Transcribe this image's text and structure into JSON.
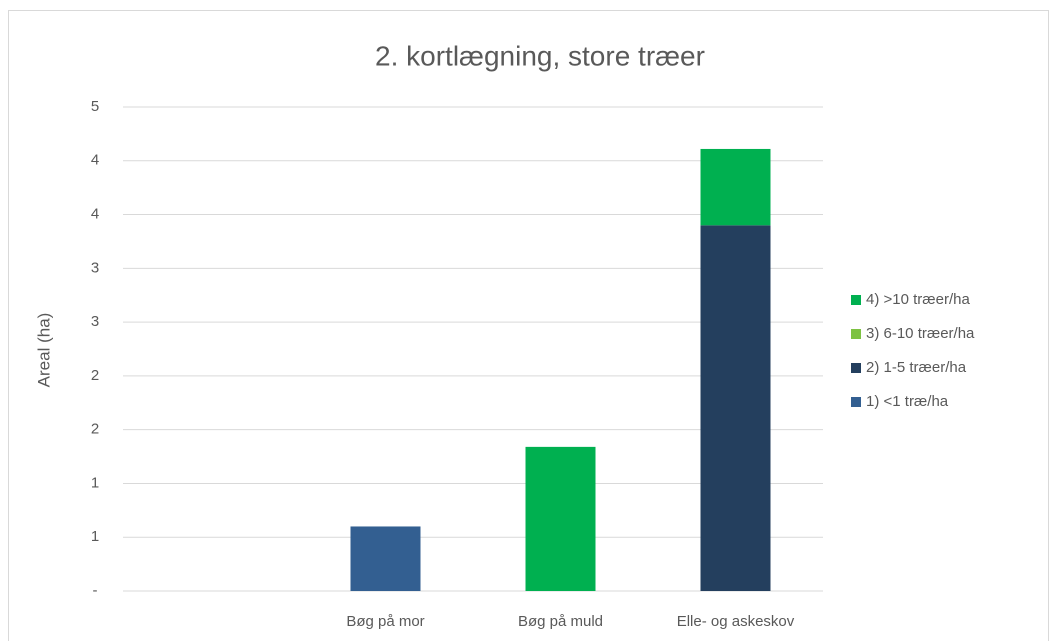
{
  "chart_data": {
    "type": "stacked_bar",
    "title": "2. kortlægning, store træer",
    "y_label": "Areal (ha)",
    "categories": [
      null,
      "Bøg på mor",
      "Bøg på muld",
      "Elle- og askeskov"
    ],
    "series": [
      {
        "name": "1) <1 træ/ha",
        "color": "#335f91",
        "values": [
          0,
          0.6,
          0,
          0
        ]
      },
      {
        "name": "2) 1-5 træer/ha",
        "color": "#243f5e",
        "values": [
          0,
          0,
          0,
          3.4
        ]
      },
      {
        "name": "3) 6-10 træer/ha",
        "color": "#7dc242",
        "values": [
          0,
          0,
          0,
          0
        ]
      },
      {
        "name": "4) >10 træer/ha",
        "color": "#00b050",
        "values": [
          0,
          0,
          1.34,
          0.71
        ]
      }
    ],
    "ylim": [
      0,
      4.5
    ],
    "yticks": [
      {
        "value": 0,
        "label": "-"
      },
      {
        "value": 0.5,
        "label": "1"
      },
      1,
      {
        "value": 1.5,
        "label": "2"
      },
      2,
      {
        "value": 2.5,
        "label": "3"
      },
      3,
      {
        "value": 3.5,
        "label": "4"
      },
      4,
      {
        "value": 4.5,
        "label": "5"
      }
    ],
    "grid": true,
    "legend": "right"
  }
}
